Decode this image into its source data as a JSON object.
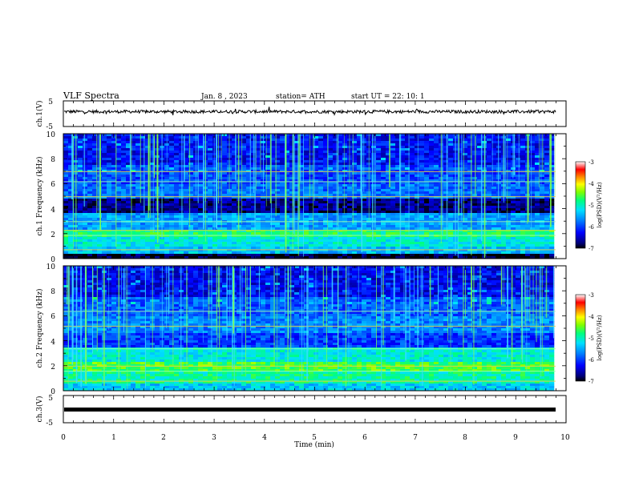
{
  "header": {
    "title": "VLF  Spectra",
    "date": "Jan.  8  , 2023",
    "station": "station= ATH",
    "start_ut": "start  UT  =   22: 10: 1"
  },
  "chart_data": [
    {
      "type": "line",
      "name": "ch1-waveform",
      "ylabel": "ch.1(V)",
      "ylim": [
        -5,
        5
      ],
      "yticks": [
        "5",
        "-5"
      ],
      "xlim": [
        0,
        10
      ],
      "approx_level_v": 0.8
    },
    {
      "type": "heatmap",
      "name": "ch1-spectrogram",
      "ylabel": "ch.1 Frequency  (kHz)",
      "ylim": [
        0,
        10
      ],
      "yticks": [
        "10",
        "8",
        "6",
        "4",
        "2",
        "0"
      ],
      "xlim": [
        0,
        9.8
      ],
      "colorbar": {
        "label": "log(PSD)(V²/Hz)",
        "range": [
          -7,
          -3
        ],
        "ticks": [
          "-3",
          "-4",
          "-5",
          "-6",
          "-7"
        ]
      }
    },
    {
      "type": "heatmap",
      "name": "ch2-spectrogram",
      "ylabel": "ch.2 Frequency  (kHz)",
      "ylim": [
        0,
        10
      ],
      "yticks": [
        "10",
        "8",
        "6",
        "4",
        "2",
        "0"
      ],
      "xlim": [
        0,
        9.8
      ],
      "colorbar": {
        "label": "log(PSD)(V²/Hz)",
        "range": [
          -7,
          -3
        ],
        "ticks": [
          "-3",
          "-4",
          "-5",
          "-6",
          "-7"
        ]
      }
    },
    {
      "type": "line",
      "name": "ch3-waveform",
      "ylabel": "ch.3(V)",
      "ylim": [
        -5,
        5
      ],
      "yticks": [
        "5",
        "-5"
      ],
      "xlim": [
        0,
        10
      ],
      "approx_level_v": 0
    }
  ],
  "xaxis": {
    "label": "Time  (min)",
    "ticks": [
      "0",
      "1",
      "2",
      "3",
      "4",
      "5",
      "6",
      "7",
      "8",
      "9",
      "10"
    ]
  },
  "colors": {
    "frame": "#000000",
    "background": "#ffffff",
    "colormap": [
      "#000000",
      "#00007a",
      "#0000ff",
      "#0070ff",
      "#00e0ff",
      "#00ff80",
      "#80ff00",
      "#ffff00",
      "#ff8000",
      "#ff0000",
      "#ffffff"
    ]
  }
}
